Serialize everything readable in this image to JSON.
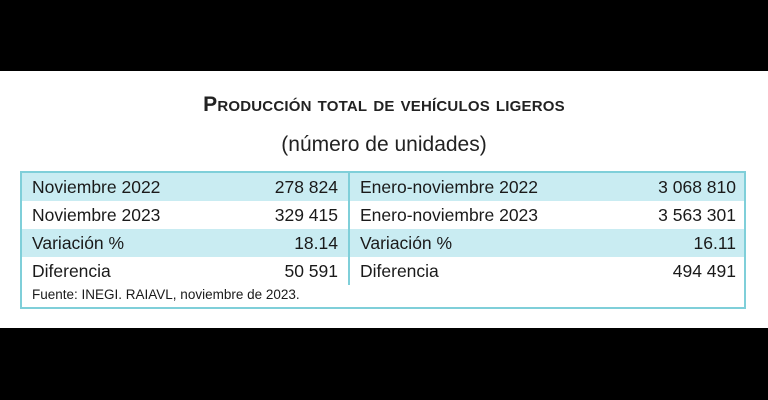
{
  "title": "Producción total de vehículos ligeros",
  "subtitle": "(número de unidades)",
  "rows": [
    {
      "left_label": "Noviembre 2022",
      "left_value": "278 824",
      "right_label": "Enero-noviembre 2022",
      "right_value": "3 068 810"
    },
    {
      "left_label": "Noviembre 2023",
      "left_value": "329 415",
      "right_label": "Enero-noviembre 2023",
      "right_value": "3 563 301"
    },
    {
      "left_label": "Variación %",
      "left_value": "18.14",
      "right_label": "Variación %",
      "right_value": "16.11"
    },
    {
      "left_label": "Diferencia",
      "left_value": "50 591",
      "right_label": "Diferencia",
      "right_value": "494 491"
    }
  ],
  "source": "Fuente: INEGI. RAIAVL, noviembre de 2023.",
  "colors": {
    "shade": "#c9ecf2",
    "border": "#7fcfd9"
  }
}
